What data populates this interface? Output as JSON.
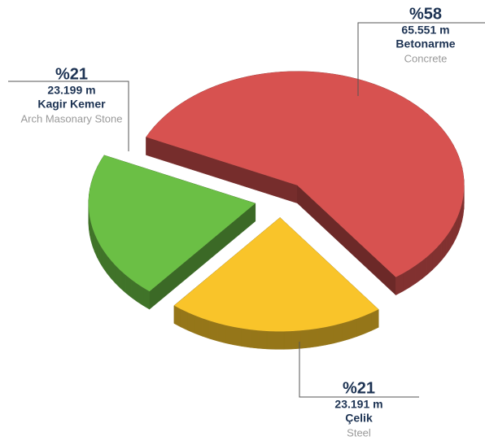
{
  "chart_data": {
    "type": "pie",
    "categories": [
      "Betonarme",
      "Kagir Kemer",
      "Çelik"
    ],
    "category_translations": [
      "Concrete",
      "Arch Masonary Stone",
      "Steel"
    ],
    "values": [
      58,
      21,
      21
    ],
    "value_labels": [
      "%58",
      "%21",
      "%21"
    ],
    "amount_labels": [
      "65.551 m",
      "23.199 m",
      "23.191 m"
    ],
    "colors": [
      "#d75250",
      "#f9c42a",
      "#6bbf45"
    ]
  }
}
